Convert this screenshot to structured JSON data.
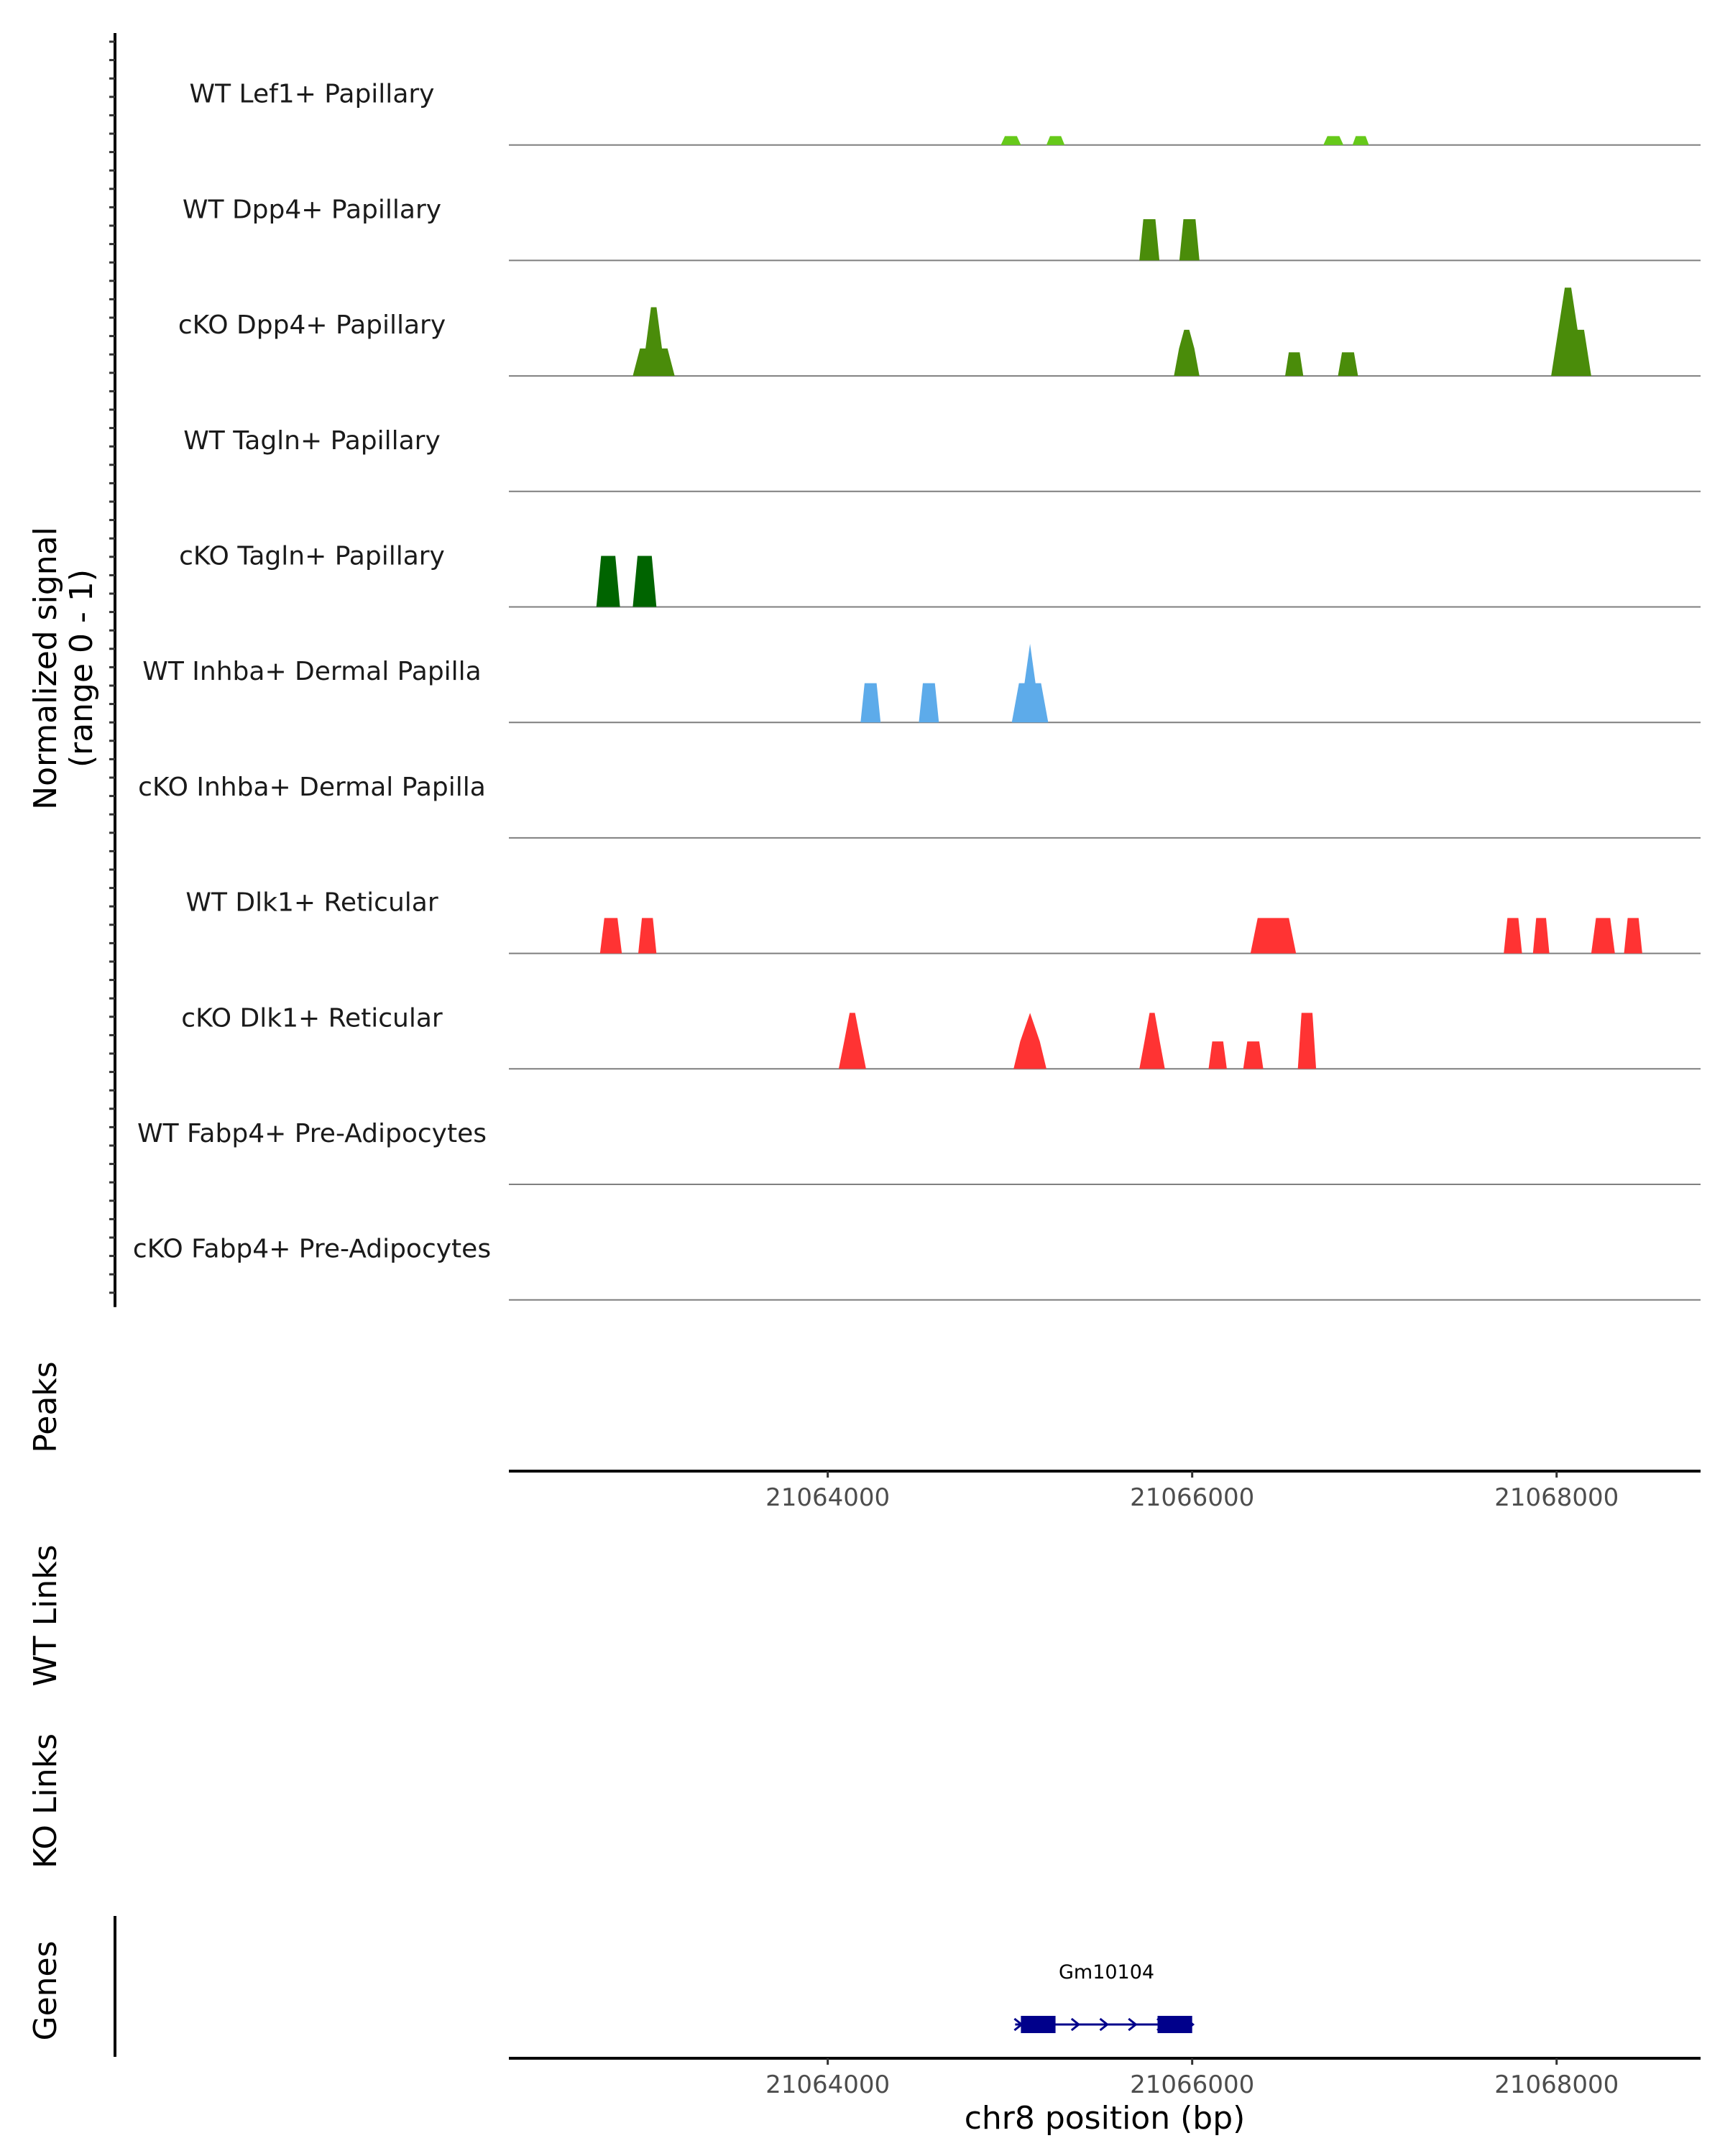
{
  "chart_data": {
    "type": "coverage-track",
    "y_axis_title_lines": [
      "Normalized signal",
      "(range 0 - 1)"
    ],
    "x_axis_title": "chr8 position (bp)",
    "x_range": [
      21062250,
      21068790
    ],
    "x_ticks": [
      21064000,
      21066000,
      21068000
    ],
    "x_tick_labels": [
      "21064000",
      "21066000",
      "21068000"
    ],
    "tracks": [
      {
        "label": "WT Lef1+ Papillary",
        "color": "#66c91a",
        "peaks": [
          {
            "start": 21064950,
            "end": 21065060,
            "height": 0.09
          },
          {
            "start": 21065200,
            "end": 21065300,
            "height": 0.09
          },
          {
            "start": 21066720,
            "end": 21066830,
            "height": 0.09
          },
          {
            "start": 21066880,
            "end": 21066970,
            "height": 0.09
          }
        ]
      },
      {
        "label": "WT Dpp4+ Papillary",
        "color": "#4a8c0a",
        "peaks": [
          {
            "start": 21065710,
            "end": 21065820,
            "height": 0.42
          },
          {
            "start": 21065930,
            "end": 21066040,
            "height": 0.42
          }
        ]
      },
      {
        "label": "cKO Dpp4+ Papillary",
        "color": "#4a8c0a",
        "peaks": [
          {
            "start": 21062930,
            "end": 21063160,
            "height": 0.7,
            "profile": [
              0.28,
              0.28,
              0.7,
              0.7,
              0.28,
              0.28
            ]
          },
          {
            "start": 21065900,
            "end": 21066040,
            "height": 0.47,
            "profile": [
              0.28,
              0.47,
              0.47,
              0.28
            ]
          },
          {
            "start": 21066510,
            "end": 21066610,
            "height": 0.24
          },
          {
            "start": 21066800,
            "end": 21066910,
            "height": 0.24
          },
          {
            "start": 21067970,
            "end": 21068190,
            "height": 0.9,
            "profile": [
              0.47,
              0.9,
              0.9,
              0.47,
              0.47
            ]
          }
        ]
      },
      {
        "label": "WT Tagln+ Papillary",
        "color": "#006400",
        "peaks": []
      },
      {
        "label": "cKO Tagln+ Papillary",
        "color": "#006400",
        "peaks": [
          {
            "start": 21062730,
            "end": 21062860,
            "height": 0.52
          },
          {
            "start": 21062930,
            "end": 21063060,
            "height": 0.52
          }
        ]
      },
      {
        "label": "WT Inhba+ Dermal Papilla",
        "color": "#5dabea",
        "peaks": [
          {
            "start": 21064180,
            "end": 21064290,
            "height": 0.4
          },
          {
            "start": 21064500,
            "end": 21064610,
            "height": 0.4
          },
          {
            "start": 21065010,
            "end": 21065210,
            "height": 0.8,
            "profile": [
              0.4,
              0.4,
              0.8,
              0.4,
              0.4
            ]
          }
        ]
      },
      {
        "label": "cKO Inhba+ Dermal Papilla",
        "color": "#5dabea",
        "peaks": []
      },
      {
        "label": "WT Dlk1+ Reticular",
        "color": "#ff3333",
        "peaks": [
          {
            "start": 21062750,
            "end": 21062870,
            "height": 0.36
          },
          {
            "start": 21062960,
            "end": 21063060,
            "height": 0.36
          },
          {
            "start": 21066320,
            "end": 21066570,
            "height": 0.36
          },
          {
            "start": 21067710,
            "end": 21067810,
            "height": 0.36
          },
          {
            "start": 21067870,
            "end": 21067960,
            "height": 0.36
          },
          {
            "start": 21068190,
            "end": 21068320,
            "height": 0.36
          },
          {
            "start": 21068370,
            "end": 21068470,
            "height": 0.36
          }
        ]
      },
      {
        "label": "cKO Dlk1+ Reticular",
        "color": "#ff3333",
        "peaks": [
          {
            "start": 21064060,
            "end": 21064210,
            "height": 0.57,
            "profile": [
              0.28,
              0.57,
              0.57,
              0.28
            ]
          },
          {
            "start": 21065020,
            "end": 21065200,
            "height": 0.57,
            "profile": [
              0.28,
              0.57,
              0.28
            ]
          },
          {
            "start": 21065710,
            "end": 21065850,
            "height": 0.57,
            "profile": [
              0.28,
              0.57,
              0.57,
              0.28
            ]
          },
          {
            "start": 21066090,
            "end": 21066190,
            "height": 0.28
          },
          {
            "start": 21066280,
            "end": 21066390,
            "height": 0.28
          },
          {
            "start": 21066580,
            "end": 21066680,
            "height": 0.57
          }
        ]
      },
      {
        "label": "WT Fabp4+ Pre-Adipocytes",
        "color": "#9370db",
        "peaks": []
      },
      {
        "label": "cKO Fabp4+ Pre-Adipocytes",
        "color": "#9370db",
        "peaks": []
      }
    ],
    "annotation_tracks": [
      "Peaks",
      "WT Links",
      "KO Links"
    ],
    "genes_track": {
      "label": "Genes",
      "genes": [
        {
          "name": "Gm10104",
          "start": 21065060,
          "end": 21066000,
          "strand": "+",
          "color": "#00008b",
          "exons": [
            [
              21065060,
              21065250
            ],
            [
              21065810,
              21066000
            ]
          ]
        }
      ]
    }
  }
}
